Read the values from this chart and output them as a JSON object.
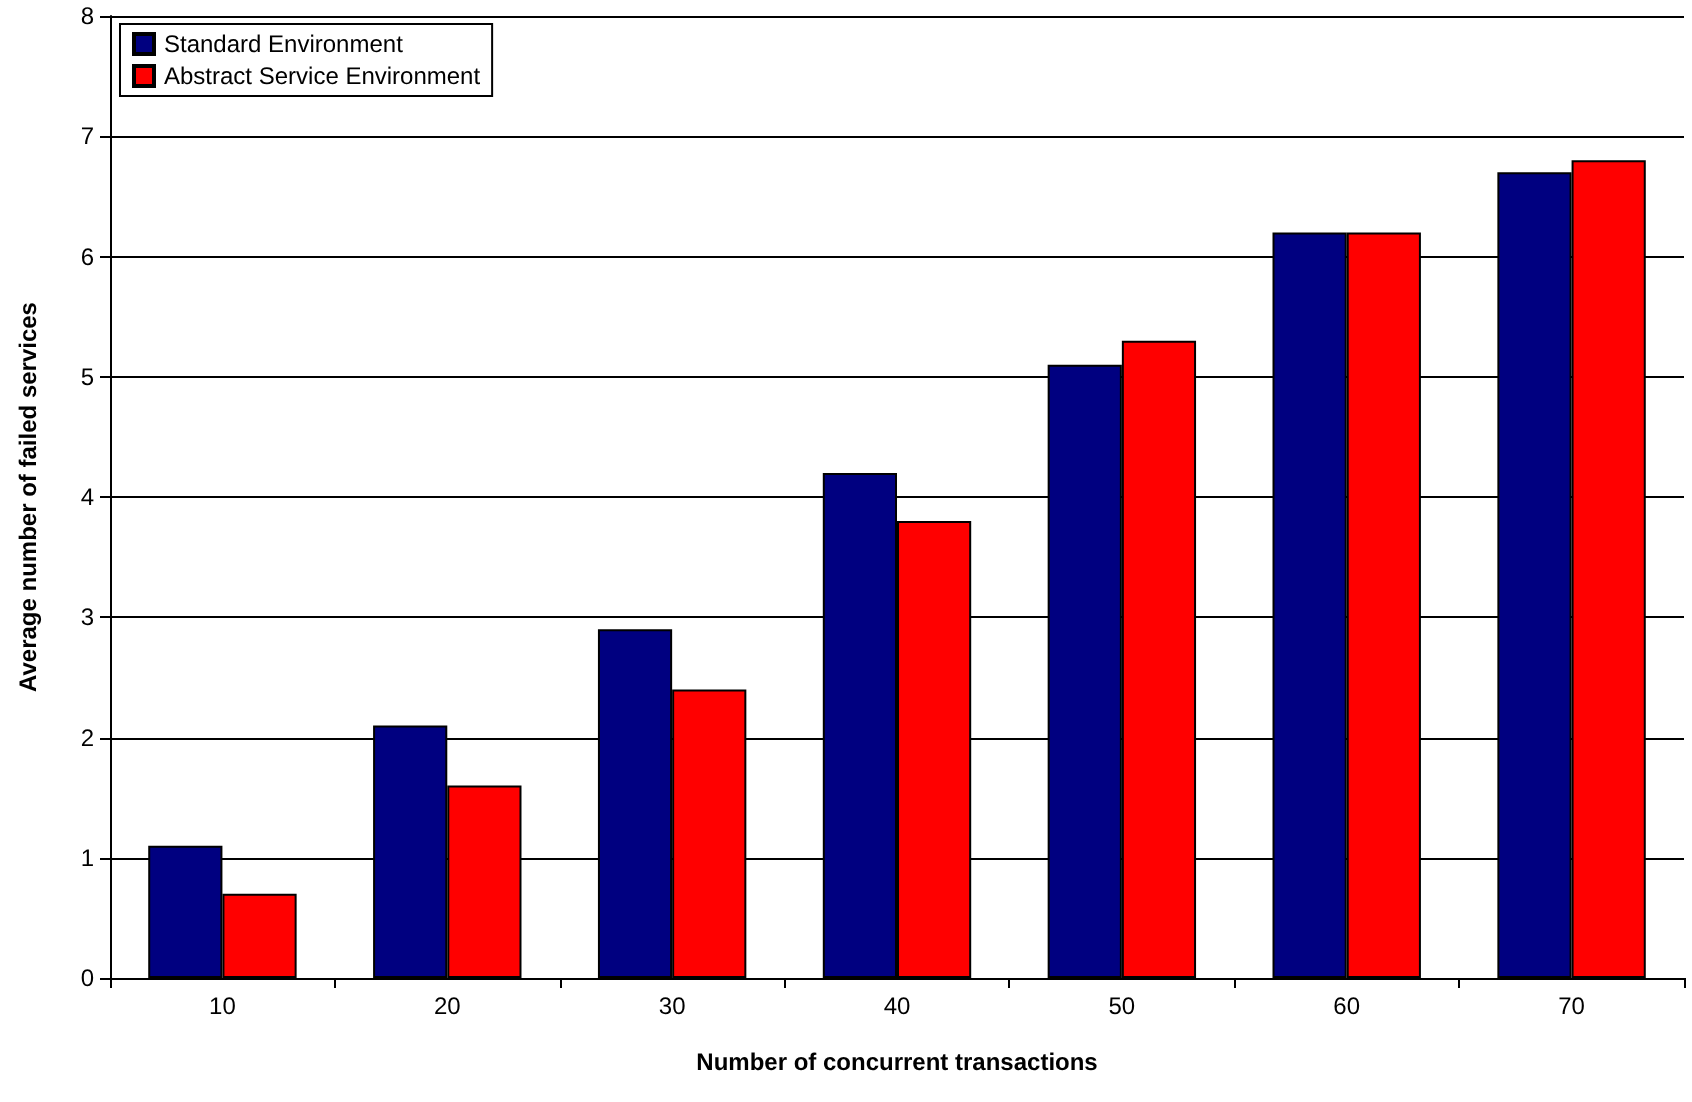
{
  "chart_data": {
    "type": "bar",
    "xlabel": "Number of concurrent transactions",
    "ylabel": "Average number of failed services",
    "categories": [
      "10",
      "20",
      "30",
      "40",
      "50",
      "60",
      "70"
    ],
    "series": [
      {
        "name": "Standard Environment",
        "color": "#000080",
        "values": [
          1.1,
          2.1,
          2.9,
          4.2,
          5.1,
          6.2,
          6.7
        ]
      },
      {
        "name": "Abstract Service Environment",
        "color": "#ff0000",
        "values": [
          0.7,
          1.6,
          2.4,
          3.8,
          5.3,
          6.2,
          6.8
        ]
      }
    ],
    "ylim": [
      0,
      8
    ],
    "yticks": [
      0,
      1,
      2,
      3,
      4,
      5,
      6,
      7,
      8
    ],
    "grid": "y",
    "legend": "top left"
  }
}
